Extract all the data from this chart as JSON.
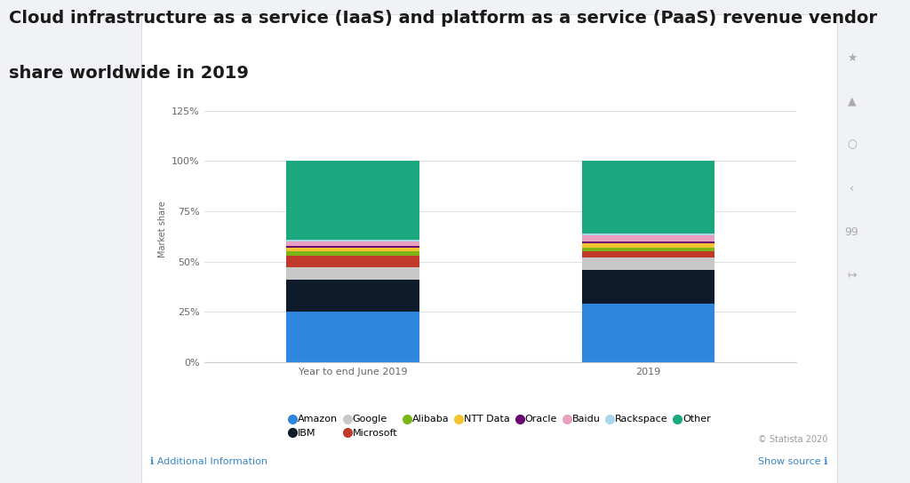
{
  "categories": [
    "Year to end June 2019",
    "2019"
  ],
  "segments": [
    {
      "label": "Amazon",
      "color": "#2E86DE",
      "values": [
        25,
        29
      ]
    },
    {
      "label": "IBM",
      "color": "#0D1B2A",
      "values": [
        16,
        17
      ]
    },
    {
      "label": "Google",
      "color": "#C8C8C8",
      "values": [
        6,
        6
      ]
    },
    {
      "label": "Microsoft",
      "color": "#C0392B",
      "values": [
        6,
        3
      ]
    },
    {
      "label": "Alibaba",
      "color": "#7CB518",
      "values": [
        2,
        2
      ]
    },
    {
      "label": "NTT Data",
      "color": "#F4C430",
      "values": [
        2,
        2
      ]
    },
    {
      "label": "Oracle",
      "color": "#6A0572",
      "values": [
        1,
        1
      ]
    },
    {
      "label": "Baidu",
      "color": "#E8A0C0",
      "values": [
        2,
        3
      ]
    },
    {
      "label": "Rackspace",
      "color": "#A8D8EA",
      "values": [
        1,
        1
      ]
    },
    {
      "label": "Other",
      "color": "#1BA87E",
      "values": [
        39,
        36
      ]
    }
  ],
  "ylabel": "Market share",
  "yticks": [
    0,
    25,
    50,
    75,
    100,
    125
  ],
  "ytick_labels": [
    "0%",
    "25%",
    "50%",
    "75%",
    "100%",
    "125%"
  ],
  "ylim": [
    0,
    132
  ],
  "title_line1": "Cloud infrastructure as a service (IaaS) and platform as a service (PaaS) revenue vendor",
  "title_line2": "share worldwide in 2019",
  "title_fontsize": 14,
  "card_bg": "#ffffff",
  "page_bg": "#f0f2f5",
  "bar_width": 0.45,
  "legend_fontsize": 8,
  "axis_label_fontsize": 7,
  "tick_fontsize": 8,
  "source_text": "© Statista 2020",
  "footer_left": "Additional Information",
  "footer_right": "Show source",
  "sidebar_icons": [
    "★",
    "🔔",
    "○",
    "‹›",
    "99",
    "↦"
  ],
  "icon_color": "#aaaaaa"
}
